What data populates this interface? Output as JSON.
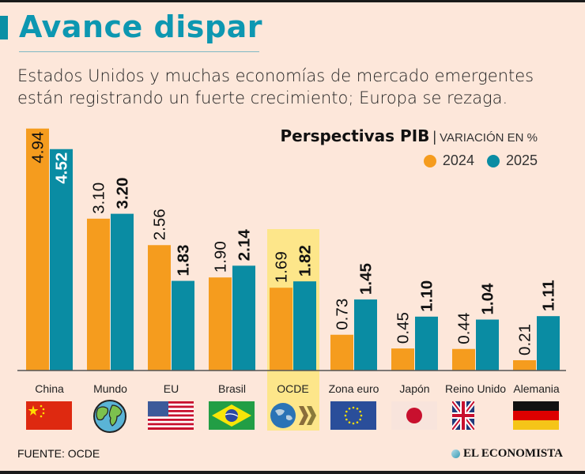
{
  "header": {
    "title": "Avance dispar",
    "subtitle_line1": "Estados Unidos y muchas economías de mercado emergentes",
    "subtitle_line2": "están registrando un fuerte crecimiento; Europa se rezaga."
  },
  "chart_head": {
    "title": "Perspectivas PIB",
    "separator": "|",
    "unit": "VARIACIÓN EN %"
  },
  "colors": {
    "series_2024": "#f59c1e",
    "series_2025": "#0a8ca3",
    "highlight": "#fde68a",
    "accent": "#0d97b1"
  },
  "chart_data": {
    "type": "bar",
    "title": "Perspectivas PIB",
    "subtitle": "VARIACIÓN EN %",
    "xlabel": "",
    "ylabel": "Variación en %",
    "ylim": [
      0,
      5
    ],
    "grid": false,
    "legend_position": "top-right",
    "categories": [
      "China",
      "Mundo",
      "EU",
      "Brasil",
      "OCDE",
      "Zona euro",
      "Japón",
      "Reino Unido",
      "Alemania"
    ],
    "highlighted_category": "OCDE",
    "series": [
      {
        "name": "2024",
        "values": [
          4.94,
          3.1,
          2.56,
          1.9,
          1.69,
          0.73,
          0.45,
          0.44,
          0.21
        ],
        "labels": [
          "4.94",
          "3.10",
          "2.56",
          "1.90",
          "1.69",
          "0.73",
          "0.45",
          "0.44",
          "0.21"
        ]
      },
      {
        "name": "2025",
        "values": [
          4.52,
          3.2,
          1.83,
          2.14,
          1.82,
          1.45,
          1.1,
          1.04,
          1.11
        ],
        "labels": [
          "4.52",
          "3.20",
          "1.83",
          "2.14",
          "1.82",
          "1.45",
          "1.10",
          "1.04",
          "1.11"
        ]
      }
    ],
    "category_icons": [
      "china-flag",
      "globe",
      "usa-flag",
      "brazil-flag",
      "oecd-logo",
      "eu-flag",
      "japan-flag",
      "uk-flag",
      "germany-flag"
    ]
  },
  "footer": {
    "source": "FUENTE:  OCDE",
    "brand": "EL ECONOMISTA"
  }
}
